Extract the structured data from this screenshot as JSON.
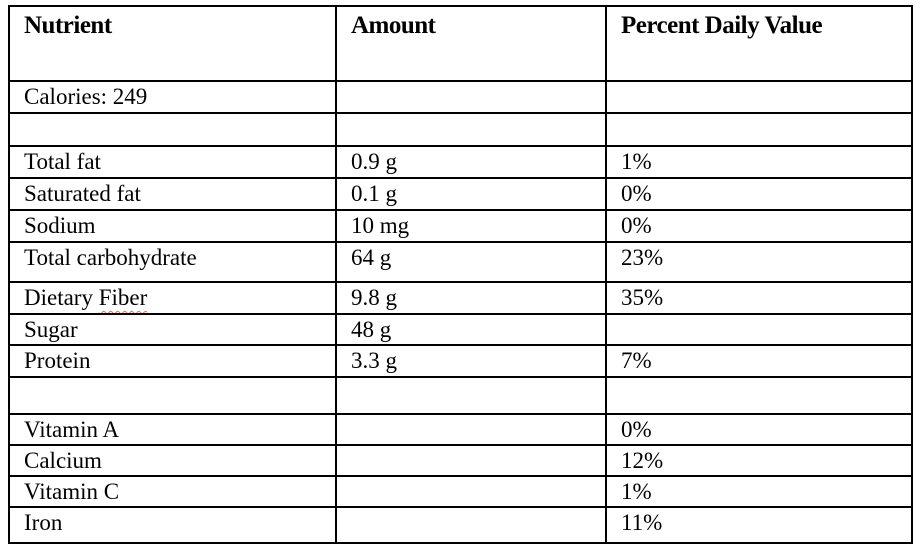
{
  "document": {
    "background_color": "#ffffff",
    "border_color": "#000000",
    "text_color": "#000000",
    "spellcheck_underline_color": "#e06a5f"
  },
  "table": {
    "headers": {
      "nutrient": "Nutrient",
      "amount": "Amount",
      "percent": "Percent Daily Value"
    },
    "rows": [
      {
        "nutrient": "Calories: 249",
        "amount": "",
        "percent": ""
      },
      {
        "nutrient": "",
        "amount": "",
        "percent": ""
      },
      {
        "nutrient": "Total fat",
        "amount": "0.9 g",
        "percent": "1%"
      },
      {
        "nutrient": "Saturated fat",
        "amount": "0.1 g",
        "percent": "0%"
      },
      {
        "nutrient": "Sodium",
        "amount": "10 mg",
        "percent": "0%"
      },
      {
        "nutrient": "Total carbohydrate",
        "amount": "64 g",
        "percent": "23%"
      },
      {
        "nutrient_prefix": "Dietary",
        "nutrient_misspelled": "Fiber",
        "amount": "9.8 g",
        "percent": "35%"
      },
      {
        "nutrient": "Sugar",
        "amount": "48 g",
        "percent": ""
      },
      {
        "nutrient": "Protein",
        "amount": "3.3 g",
        "percent": "7%"
      },
      {
        "nutrient": "",
        "amount": "",
        "percent": ""
      },
      {
        "nutrient": "Vitamin A",
        "amount": "",
        "percent": "0%"
      },
      {
        "nutrient": "Calcium",
        "amount": "",
        "percent": "12%"
      },
      {
        "nutrient": "Vitamin C",
        "amount": "",
        "percent": "1%"
      },
      {
        "nutrient": "Iron",
        "amount": "",
        "percent": "11%"
      }
    ]
  }
}
